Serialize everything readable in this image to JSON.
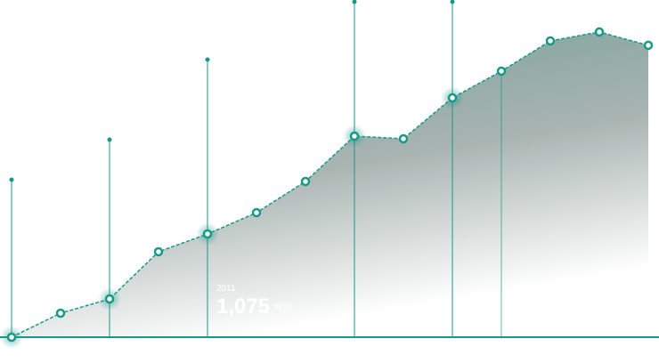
{
  "chart_data": {
    "type": "area",
    "categories": [
      null,
      null,
      null,
      null,
      "2011",
      null,
      null,
      null,
      null,
      null,
      null,
      null,
      null,
      null
    ],
    "values": [
      0,
      250,
      398,
      890,
      1075,
      1297,
      1622,
      2094,
      2067,
      2493,
      2771,
      3086,
      3179,
      3040
    ],
    "value_labels": [
      null,
      null,
      null,
      null,
      "1,075",
      null,
      null,
      null,
      null,
      null,
      null,
      null,
      null,
      null
    ],
    "unit": "백만",
    "color": "#17998a",
    "ylim": [
      0,
      3512
    ]
  }
}
